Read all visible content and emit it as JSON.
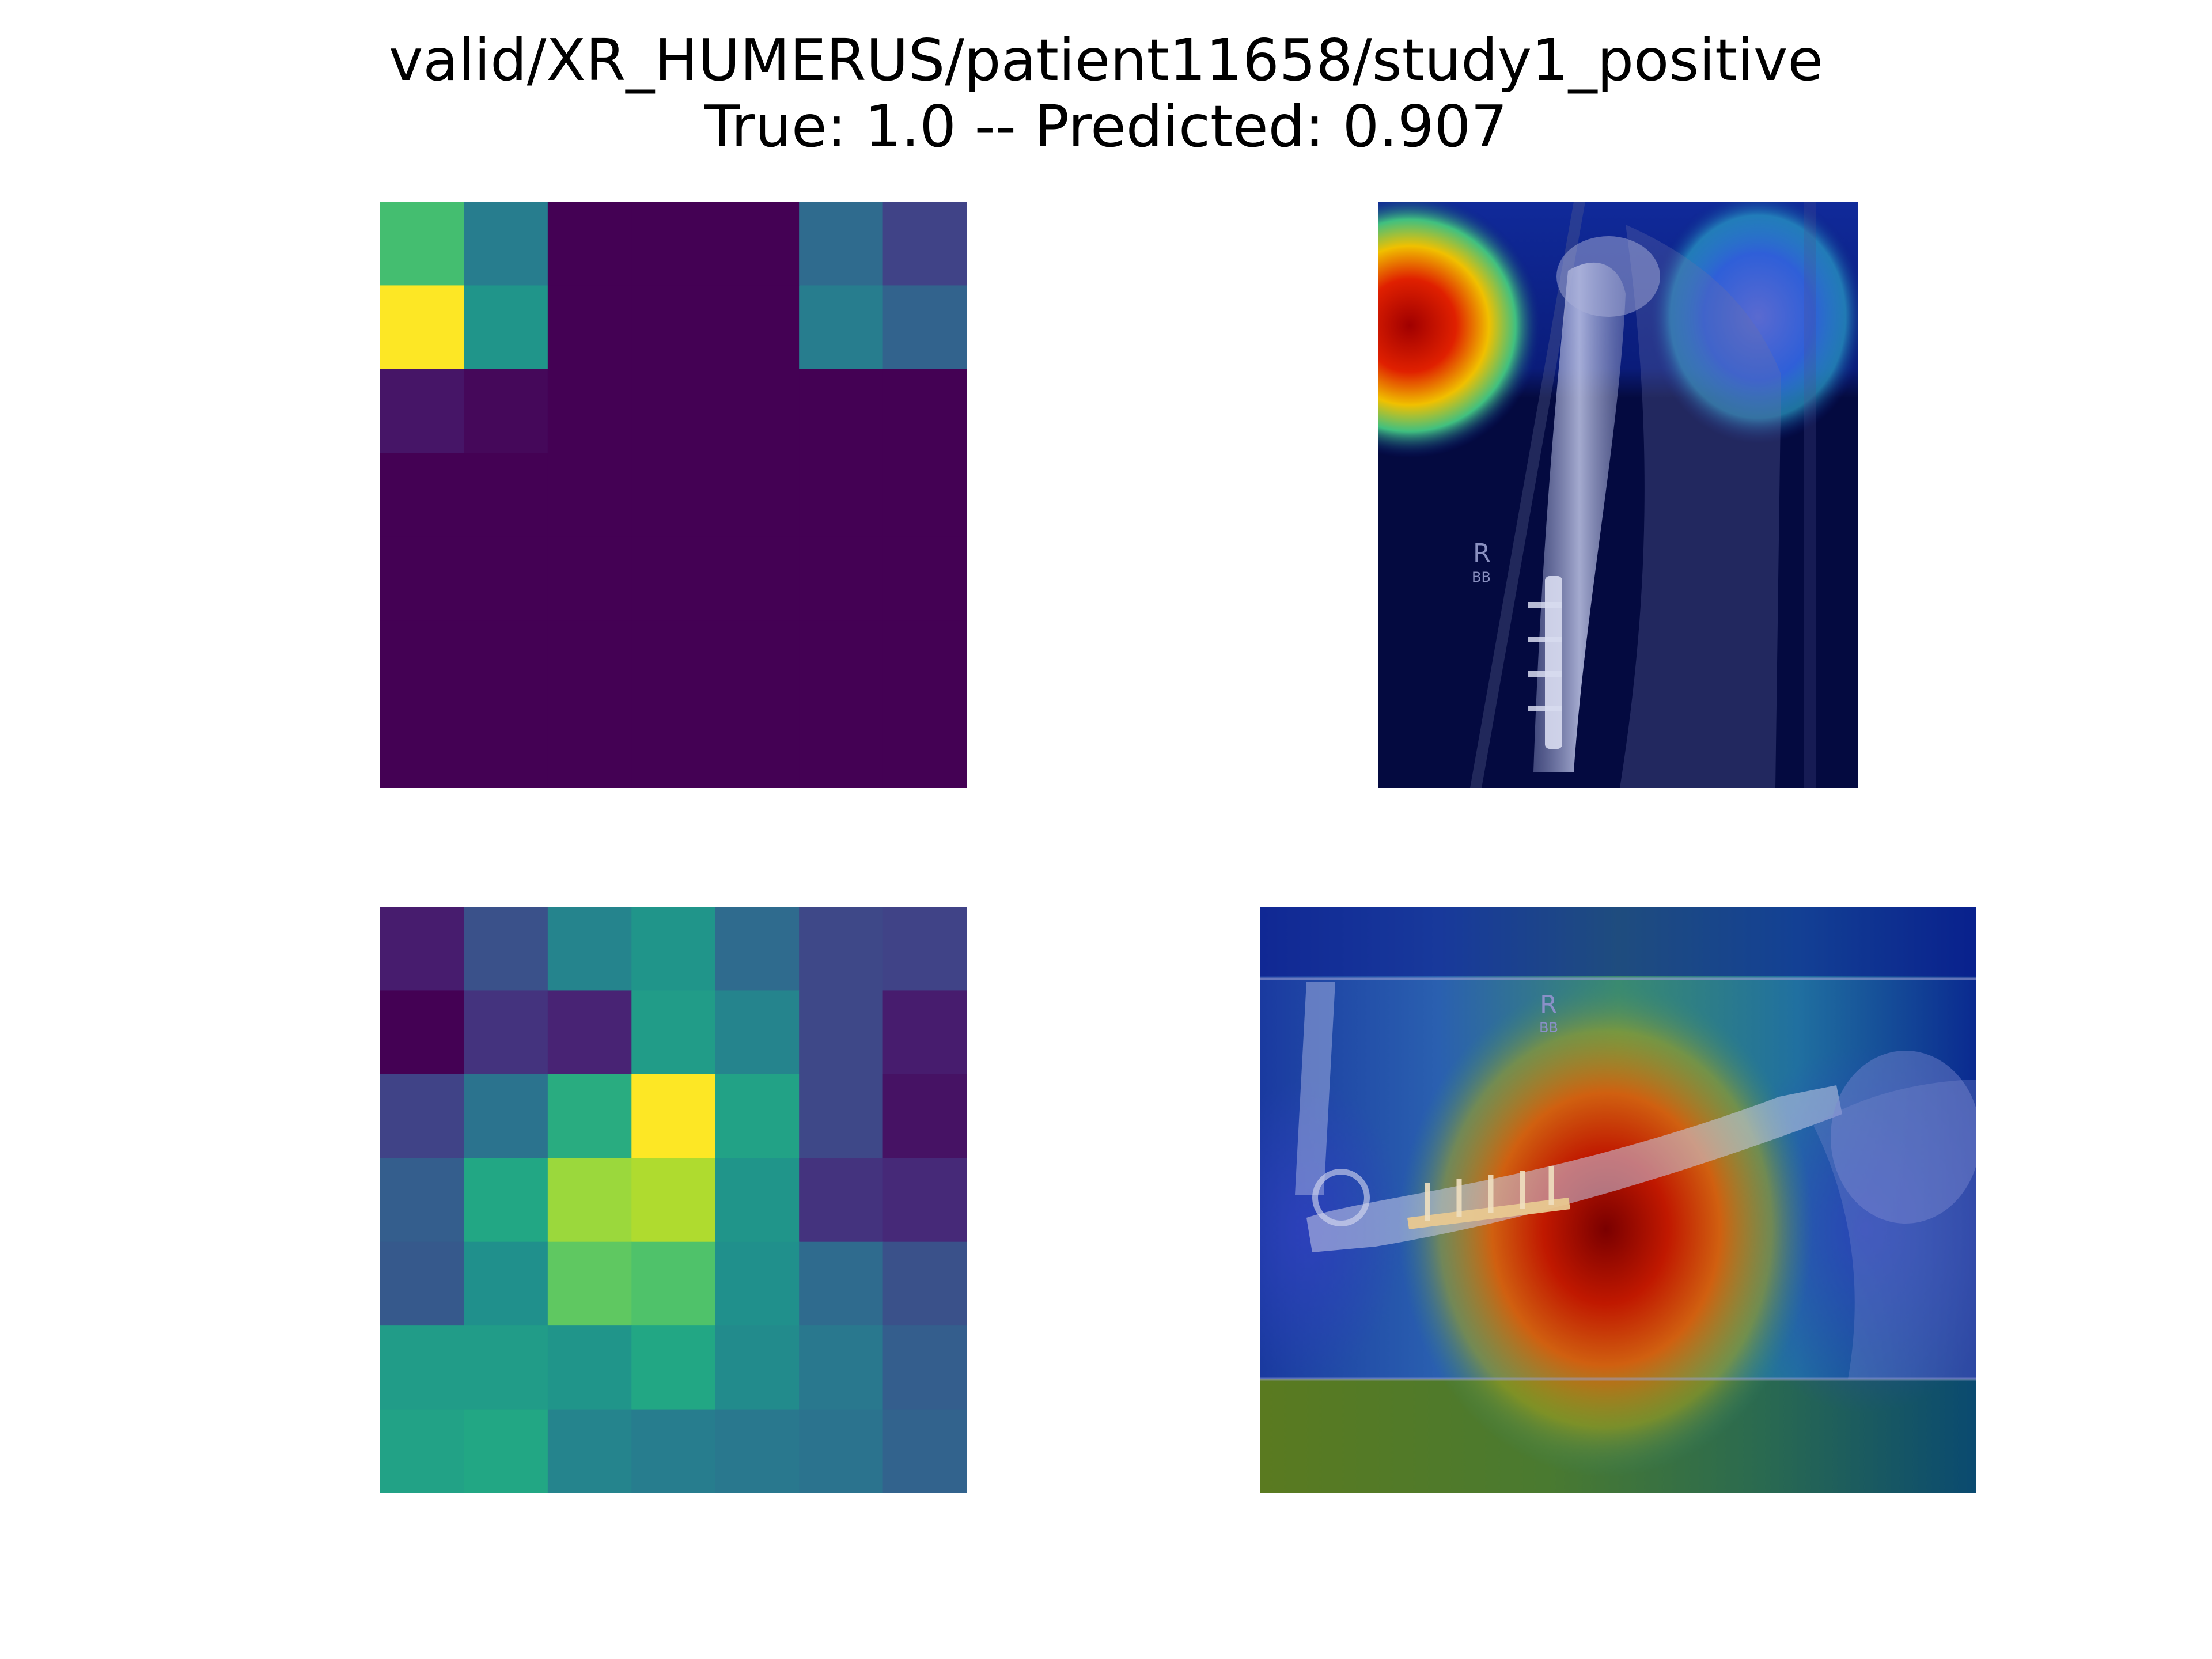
{
  "figure": {
    "title_line1": "valid/XR_HUMERUS/patient11658/study1_positive",
    "title_line2": "True: 1.0 -- Predicted: 0.907"
  },
  "chart_data": [
    {
      "type": "heatmap",
      "panel": "top-left",
      "colormap": "viridis",
      "rows": 7,
      "cols": 7,
      "grid": false,
      "values": [
        [
          0.7,
          0.42,
          0.0,
          0.0,
          0.0,
          0.35,
          0.2
        ],
        [
          1.0,
          0.52,
          0.0,
          0.0,
          0.0,
          0.42,
          0.32
        ],
        [
          0.06,
          0.02,
          0.0,
          0.0,
          0.0,
          0.0,
          0.0
        ],
        [
          0.0,
          0.0,
          0.0,
          0.0,
          0.0,
          0.0,
          0.0
        ],
        [
          0.0,
          0.0,
          0.0,
          0.0,
          0.0,
          0.0,
          0.0
        ],
        [
          0.0,
          0.0,
          0.0,
          0.0,
          0.0,
          0.0,
          0.0
        ],
        [
          0.0,
          0.0,
          0.0,
          0.0,
          0.0,
          0.0,
          0.0
        ]
      ]
    },
    {
      "type": "heatmap",
      "panel": "bottom-left",
      "colormap": "viridis",
      "rows": 7,
      "cols": 7,
      "grid": false,
      "values": [
        [
          0.08,
          0.25,
          0.45,
          0.52,
          0.35,
          0.22,
          0.2
        ],
        [
          0.0,
          0.15,
          0.1,
          0.55,
          0.45,
          0.22,
          0.08
        ],
        [
          0.2,
          0.38,
          0.62,
          1.0,
          0.58,
          0.22,
          0.05
        ],
        [
          0.3,
          0.6,
          0.85,
          0.88,
          0.52,
          0.15,
          0.12
        ],
        [
          0.28,
          0.5,
          0.75,
          0.72,
          0.5,
          0.35,
          0.25
        ],
        [
          0.55,
          0.55,
          0.52,
          0.6,
          0.48,
          0.4,
          0.3
        ],
        [
          0.58,
          0.6,
          0.45,
          0.42,
          0.4,
          0.38,
          0.32
        ]
      ]
    }
  ],
  "overlays": [
    {
      "panel": "top-right",
      "content": "humerus x-ray with heatmap overlay",
      "colormap": "jet",
      "marker": "R",
      "marker_sub": "BB"
    },
    {
      "panel": "bottom-right",
      "content": "humerus x-ray with heatmap overlay",
      "colormap": "jet",
      "marker": "R",
      "marker_sub": "BB"
    }
  ]
}
